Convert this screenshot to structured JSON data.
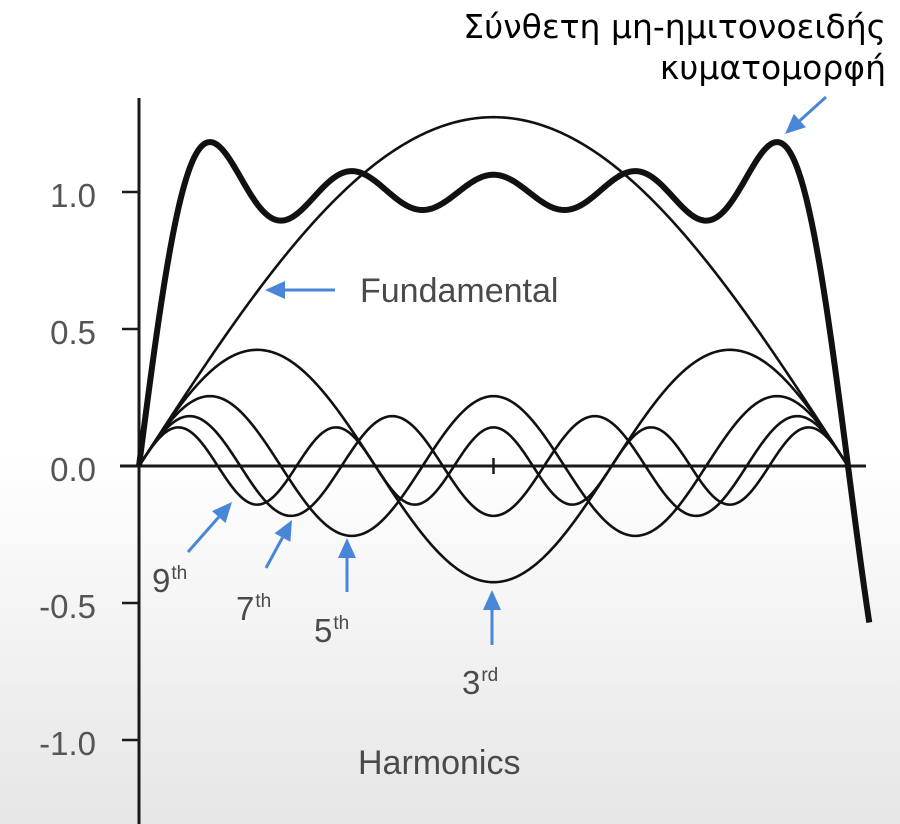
{
  "chart_data": {
    "type": "line",
    "title_lines": [
      "Σύνθετη μη-ημιτονοειδής",
      "κυματομορφή"
    ],
    "yticks": [
      "1.0",
      "0.5",
      "0.0",
      "-0.5",
      "-1.0"
    ],
    "ytick_values": [
      1.0,
      0.5,
      0.0,
      -0.5,
      -1.0
    ],
    "ylim": [
      -1.2,
      1.35
    ],
    "xlim": [
      0,
      1
    ],
    "grid": false,
    "series": [
      {
        "name": "Fundamental",
        "harmonic": 1,
        "amplitude": 1.273
      },
      {
        "name": "3rd",
        "harmonic": 3,
        "amplitude": 0.424
      },
      {
        "name": "5th",
        "harmonic": 5,
        "amplitude": 0.255
      },
      {
        "name": "7th",
        "harmonic": 7,
        "amplitude": 0.182
      },
      {
        "name": "9th",
        "harmonic": 9,
        "amplitude": 0.141
      },
      {
        "name": "composite",
        "harmonics": [
          1,
          3,
          5,
          7,
          9
        ]
      }
    ],
    "annotations": {
      "fundamental": "Fundamental",
      "harmonics": "Harmonics",
      "ninth": {
        "num": "9",
        "suffix": "th"
      },
      "seventh": {
        "num": "7",
        "suffix": "th"
      },
      "fifth": {
        "num": "5",
        "suffix": "th"
      },
      "third": {
        "num": "3",
        "suffix": "rd"
      }
    },
    "colors": {
      "curve": "#111111",
      "arrow": "#4a86d8",
      "label": "#4a4a4a"
    }
  }
}
